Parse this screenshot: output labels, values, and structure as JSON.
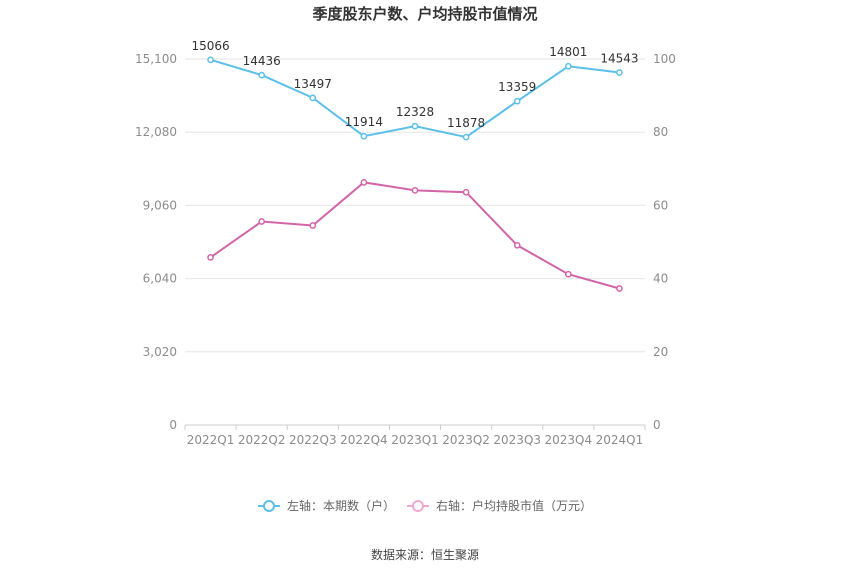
{
  "chart_data": {
    "type": "line",
    "title": "季度股东户数、户均持股市值情况",
    "categories": [
      "2022Q1",
      "2022Q2",
      "2022Q3",
      "2022Q4",
      "2023Q1",
      "2023Q2",
      "2023Q3",
      "2023Q4",
      "2024Q1"
    ],
    "left_axis": {
      "ylim": [
        0,
        15100
      ],
      "ticks": [
        "0",
        "3,020",
        "6,040",
        "9,060",
        "12,080",
        "15,100"
      ]
    },
    "right_axis": {
      "ylim": [
        0,
        100
      ],
      "ticks": [
        "0",
        "20",
        "40",
        "60",
        "80",
        "100"
      ]
    },
    "series": [
      {
        "name": "左轴：本期数（户）",
        "axis": "left",
        "color": "#5bbfea",
        "values": [
          15066,
          14436,
          13497,
          11914,
          12328,
          11878,
          13359,
          14801,
          14543
        ],
        "labels": [
          "15066",
          "14436",
          "13497",
          "11914",
          "12328",
          "11878",
          "13359",
          "14801",
          "14543"
        ]
      },
      {
        "name": "右轴：户均持股市值（万元）",
        "axis": "right",
        "color": "#d264a8",
        "legend_color": "#f0a8cf",
        "values": [
          45.8,
          55.6,
          54.5,
          66.3,
          64.1,
          63.6,
          49.1,
          41.2,
          37.3
        ]
      }
    ],
    "grid": true,
    "legend_position": "bottom"
  },
  "source": "数据来源：恒生聚源"
}
